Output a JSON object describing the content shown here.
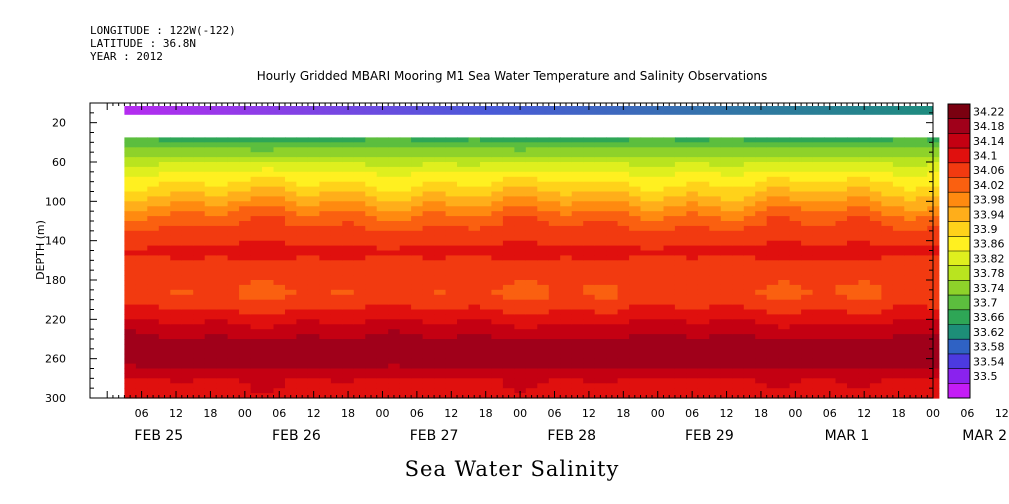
{
  "header": {
    "longitude": "LONGITUDE : 122W(-122)",
    "latitude": "LATITUDE : 36.8N",
    "year": "YEAR : 2012"
  },
  "chart_data": {
    "type": "heatmap",
    "title": "Hourly Gridded MBARI Mooring M1 Sea Water Temperature and Salinity Observations",
    "xlabel": "Sea Water Salinity",
    "ylabel": "DEPTH (m)",
    "x_range_hours_from_feb25_00": [
      3,
      144
    ],
    "ylim": [
      300,
      0
    ],
    "y_ticks": [
      "20",
      "60",
      "100",
      "140",
      "180",
      "220",
      "260",
      "300"
    ],
    "hour_ticks": [
      "06",
      "12",
      "18",
      "00",
      "06",
      "12",
      "18",
      "00",
      "06",
      "12",
      "18",
      "00",
      "06",
      "12",
      "18",
      "00",
      "06",
      "12",
      "18",
      "00",
      "06",
      "12",
      "18",
      "00",
      "06",
      "12",
      "18",
      "00"
    ],
    "day_labels": [
      "FEB 25",
      "FEB 26",
      "FEB 27",
      "FEB 28",
      "FEB 29",
      "MAR  1",
      "MAR  2"
    ],
    "colorbar_levels": [
      "34.22",
      "34.18",
      "34.14",
      "34.1",
      "34.06",
      "34.02",
      "33.98",
      "33.94",
      "33.9",
      "33.86",
      "33.82",
      "33.78",
      "33.74",
      "33.7",
      "33.66",
      "33.62",
      "33.58",
      "33.54",
      "33.5"
    ],
    "colors": [
      "#7a0010",
      "#a0001a",
      "#c40012",
      "#e0100e",
      "#f23a10",
      "#fa6010",
      "#ff8a10",
      "#ffae1a",
      "#ffd21a",
      "#fff020",
      "#dfef1e",
      "#b9e41f",
      "#8ed22a",
      "#5cbe3e",
      "#2ea656",
      "#1d8e78",
      "#2f62c4",
      "#4c3ae0",
      "#8a22ee",
      "#c41cf6"
    ],
    "surface_band": {
      "depth_m": [
        3,
        12
      ],
      "start_color": "#b52cf0",
      "end_color": "#1e8c7e"
    },
    "data_start_depth_m": 35,
    "profile": [
      {
        "depth": 35,
        "value": 33.68
      },
      {
        "depth": 50,
        "value": 33.76
      },
      {
        "depth": 70,
        "value": 33.86
      },
      {
        "depth": 90,
        "value": 33.93
      },
      {
        "depth": 105,
        "value": 33.99
      },
      {
        "depth": 120,
        "value": 34.05
      },
      {
        "depth": 135,
        "value": 34.08
      },
      {
        "depth": 150,
        "value": 34.11
      },
      {
        "depth": 165,
        "value": 34.09
      },
      {
        "depth": 180,
        "value": 34.07
      },
      {
        "depth": 195,
        "value": 34.06
      },
      {
        "depth": 210,
        "value": 34.1
      },
      {
        "depth": 230,
        "value": 34.16
      },
      {
        "depth": 250,
        "value": 34.21
      },
      {
        "depth": 265,
        "value": 34.19
      },
      {
        "depth": 280,
        "value": 34.14
      },
      {
        "depth": 300,
        "value": 34.12
      }
    ]
  }
}
